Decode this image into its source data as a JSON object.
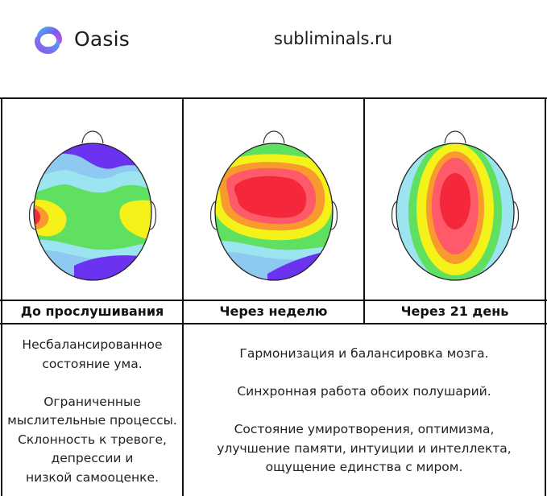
{
  "header": {
    "brand": "Oasis",
    "site": "subliminals.ru"
  },
  "columns": [
    {
      "caption": "До прослушивания"
    },
    {
      "caption": "Через неделю"
    },
    {
      "caption": "Через 21 день"
    }
  ],
  "descriptions": {
    "left": [
      "Несбалансированное",
      "состояние ума.",
      "",
      "Ограниченные",
      "мыслительные процессы.",
      "Склонность к тревоге,",
      "депрессии и",
      "низкой самооценке."
    ],
    "right": [
      "Гармонизация и балансировка мозга.",
      "",
      "Синхронная работа обоих полушарий.",
      "",
      "Состояние умиротворения, оптимизма,",
      "улучшение памяти, интуиции и интеллекта,",
      "ощущение единства с миром."
    ]
  },
  "colors": {
    "violet": "#6b33f0",
    "blue": "#8ec9f2",
    "cyan": "#9ce4f0",
    "green": "#5fe060",
    "yellow": "#f4f219",
    "orange": "#f89a2e",
    "red": "#f4283a",
    "lightred": "#ff5a6a"
  },
  "icons": {
    "logo": "oasis-swirl-logo",
    "nose": "nose-icon",
    "ear": "ear-icon"
  }
}
